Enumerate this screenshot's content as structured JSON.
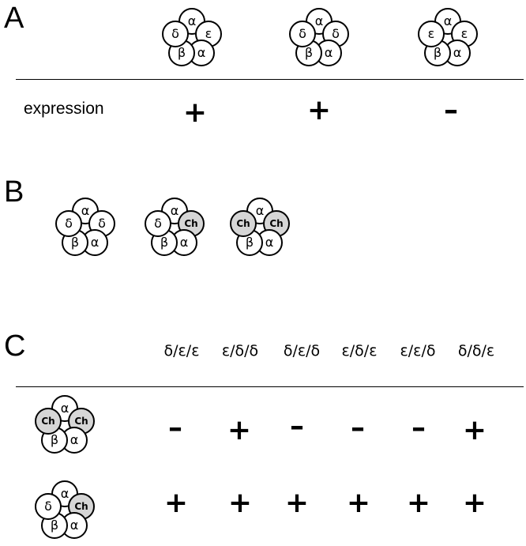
{
  "panels": {
    "A": {
      "letter": "A",
      "row_label": "expression",
      "pentamers": [
        {
          "subunits": [
            "α",
            "ε",
            "α",
            "β",
            "δ"
          ],
          "chimera": [
            false,
            false,
            false,
            false,
            false
          ],
          "expression": "+"
        },
        {
          "subunits": [
            "α",
            "δ",
            "α",
            "β",
            "δ"
          ],
          "chimera": [
            false,
            false,
            false,
            false,
            false
          ],
          "expression": "+"
        },
        {
          "subunits": [
            "α",
            "ε",
            "α",
            "β",
            "ε"
          ],
          "chimera": [
            false,
            false,
            false,
            false,
            false
          ],
          "expression": "–"
        }
      ]
    },
    "B": {
      "letter": "B",
      "pentamers": [
        {
          "subunits": [
            "α",
            "δ",
            "α",
            "β",
            "δ"
          ],
          "chimera": [
            false,
            false,
            false,
            false,
            false
          ]
        },
        {
          "subunits": [
            "α",
            "Ch",
            "α",
            "β",
            "δ"
          ],
          "chimera": [
            false,
            true,
            false,
            false,
            false
          ]
        },
        {
          "subunits": [
            "α",
            "Ch",
            "α",
            "β",
            "Ch"
          ],
          "chimera": [
            false,
            true,
            false,
            false,
            true
          ]
        }
      ]
    },
    "C": {
      "letter": "C",
      "columns": [
        "δ/ε/ε",
        "ε/δ/δ",
        "δ/ε/δ",
        "ε/δ/ε",
        "ε/ε/δ",
        "δ/δ/ε"
      ],
      "rows": [
        {
          "pentamer": {
            "subunits": [
              "α",
              "Ch",
              "α",
              "β",
              "Ch"
            ],
            "chimera": [
              false,
              true,
              false,
              false,
              true
            ]
          },
          "values": [
            "–",
            "+",
            "–",
            "–",
            "–",
            "+"
          ]
        },
        {
          "pentamer": {
            "subunits": [
              "α",
              "Ch",
              "α",
              "β",
              "δ"
            ],
            "chimera": [
              false,
              true,
              false,
              false,
              false
            ]
          },
          "values": [
            "+",
            "+",
            "+",
            "+",
            "+",
            "+"
          ]
        }
      ]
    }
  }
}
